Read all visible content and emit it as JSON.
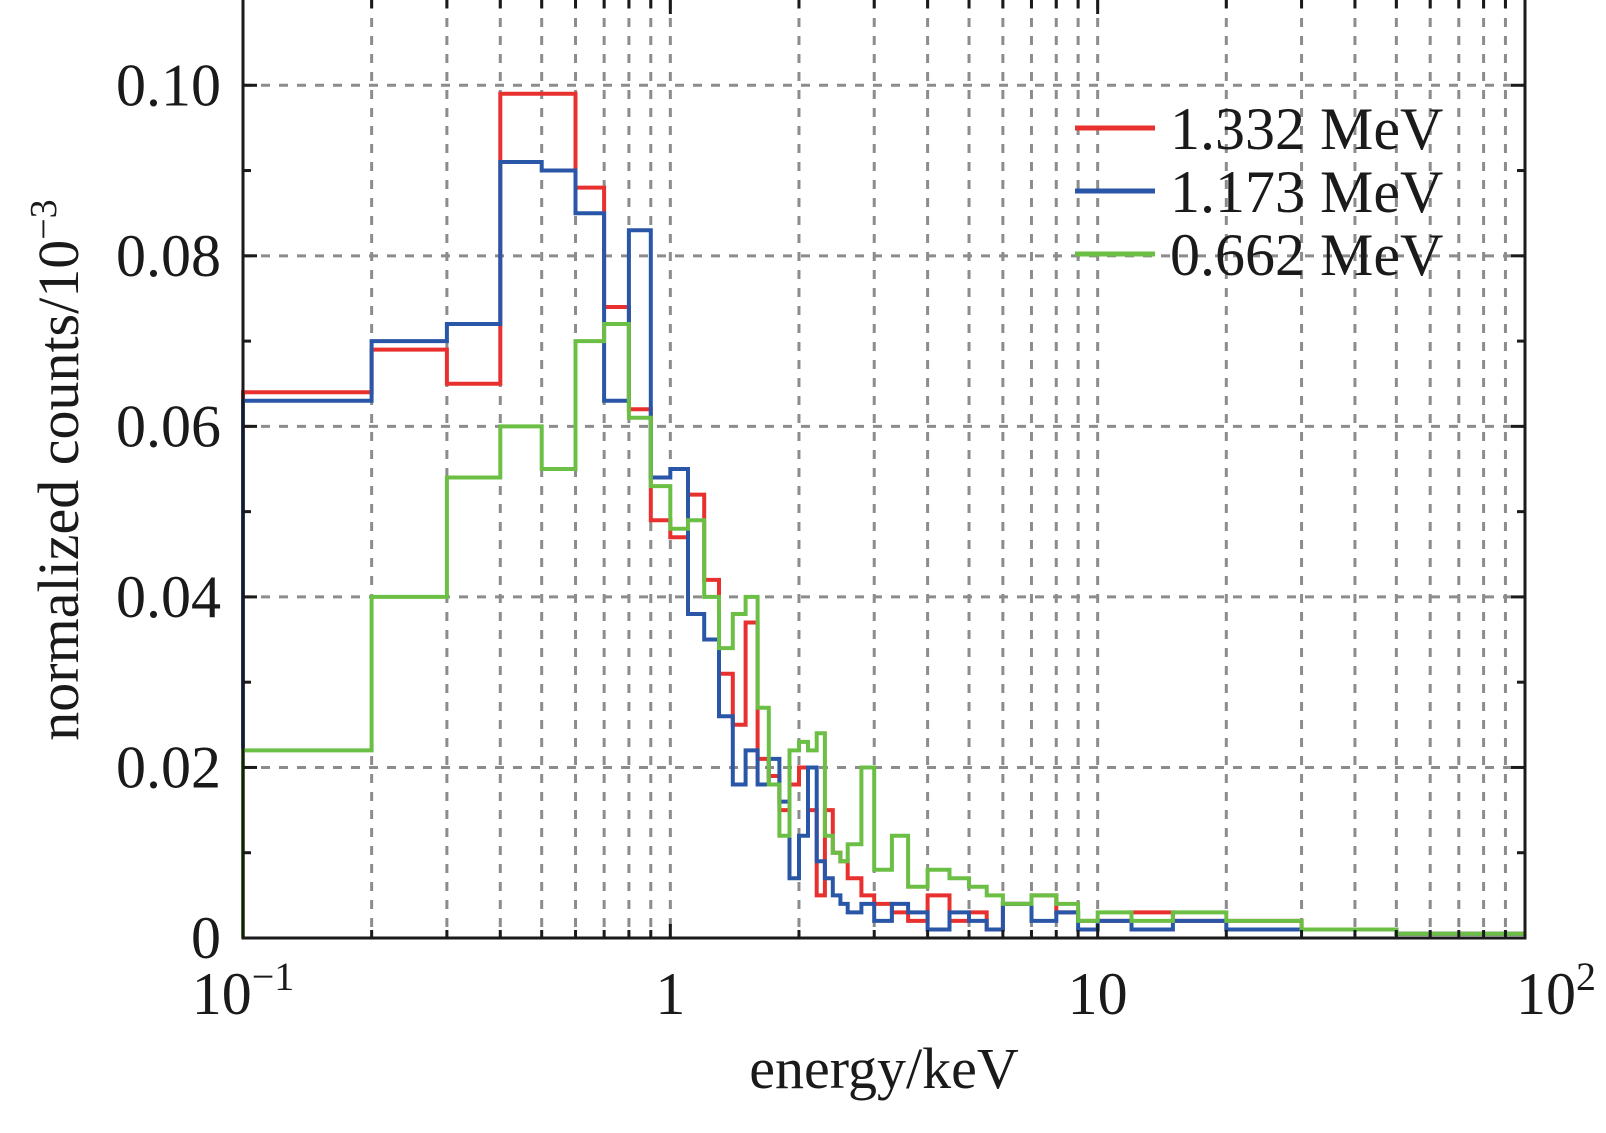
{
  "chart_data": {
    "type": "line",
    "step": true,
    "title": "",
    "xlabel": "energy/keV",
    "ylabel": "normalized counts/10",
    "ylabel_exponent": "−3",
    "x_scale": "log",
    "xlim": [
      0.1,
      100
    ],
    "ylim": [
      0,
      0.11
    ],
    "grid": true,
    "x_ticks": [
      {
        "value": 0.1,
        "base": "10",
        "exp": "−1"
      },
      {
        "value": 1,
        "base": "1",
        "exp": ""
      },
      {
        "value": 10,
        "base": "10",
        "exp": ""
      },
      {
        "value": 100,
        "base": "10",
        "exp": "2"
      }
    ],
    "y_ticks": [
      {
        "value": 0,
        "label": "0"
      },
      {
        "value": 0.02,
        "label": "0.02"
      },
      {
        "value": 0.04,
        "label": "0.04"
      },
      {
        "value": 0.06,
        "label": "0.06"
      },
      {
        "value": 0.08,
        "label": "0.08"
      },
      {
        "value": 0.1,
        "label": "0.10"
      }
    ],
    "legend_position": "top-right",
    "series": [
      {
        "name": "1.332 MeV",
        "color": "#e8312f",
        "edges": [
          0.1,
          0.2,
          0.3,
          0.4,
          0.5,
          0.6,
          0.7,
          0.8,
          0.9,
          1.0,
          1.1,
          1.2,
          1.3,
          1.4,
          1.5,
          1.6,
          1.7,
          1.8,
          1.9,
          2.0,
          2.1,
          2.2,
          2.3,
          2.4,
          2.5,
          2.6,
          2.8,
          3.0,
          3.3,
          3.6,
          4.0,
          4.5,
          5.0,
          5.5,
          6.0,
          7.0,
          8.0,
          9.0,
          10,
          12,
          15,
          20,
          30,
          50,
          100
        ],
        "values": [
          0.064,
          0.069,
          0.065,
          0.099,
          0.099,
          0.088,
          0.074,
          0.062,
          0.049,
          0.047,
          0.052,
          0.042,
          0.031,
          0.025,
          0.037,
          0.021,
          0.019,
          0.015,
          0.018,
          0.02,
          0.015,
          0.005,
          0.015,
          0.01,
          0.009,
          0.007,
          0.005,
          0.004,
          0.003,
          0.002,
          0.005,
          0.002,
          0.003,
          0.001,
          0.004,
          0.005,
          0.003,
          0.002,
          0.002,
          0.003,
          0.002,
          0.002,
          0.001,
          0.0005
        ]
      },
      {
        "name": "1.173 MeV",
        "color": "#2a56a8",
        "edges": [
          0.1,
          0.2,
          0.3,
          0.4,
          0.5,
          0.6,
          0.7,
          0.8,
          0.9,
          1.0,
          1.1,
          1.2,
          1.3,
          1.4,
          1.5,
          1.6,
          1.7,
          1.8,
          1.9,
          2.0,
          2.1,
          2.2,
          2.3,
          2.4,
          2.5,
          2.6,
          2.8,
          3.0,
          3.3,
          3.6,
          4.0,
          4.5,
          5.0,
          5.5,
          6.0,
          7.0,
          8.0,
          9.0,
          10,
          12,
          15,
          20,
          30,
          50,
          100
        ],
        "values": [
          0.063,
          0.07,
          0.072,
          0.091,
          0.09,
          0.085,
          0.063,
          0.083,
          0.054,
          0.055,
          0.038,
          0.035,
          0.026,
          0.018,
          0.022,
          0.018,
          0.021,
          0.016,
          0.007,
          0.012,
          0.02,
          0.009,
          0.007,
          0.005,
          0.004,
          0.003,
          0.004,
          0.002,
          0.004,
          0.003,
          0.001,
          0.003,
          0.002,
          0.001,
          0.004,
          0.002,
          0.003,
          0.001,
          0.002,
          0.001,
          0.002,
          0.001,
          0.001,
          0.0005
        ]
      },
      {
        "name": "0.662 MeV",
        "color": "#6cbf45",
        "edges": [
          0.1,
          0.2,
          0.3,
          0.4,
          0.5,
          0.6,
          0.7,
          0.8,
          0.9,
          1.0,
          1.1,
          1.2,
          1.3,
          1.4,
          1.5,
          1.6,
          1.7,
          1.8,
          1.9,
          2.0,
          2.1,
          2.2,
          2.3,
          2.4,
          2.5,
          2.6,
          2.8,
          3.0,
          3.3,
          3.6,
          4.0,
          4.5,
          5.0,
          5.5,
          6.0,
          7.0,
          8.0,
          9.0,
          10,
          12,
          15,
          20,
          30,
          50,
          100
        ],
        "values": [
          0.022,
          0.04,
          0.054,
          0.06,
          0.055,
          0.07,
          0.072,
          0.061,
          0.053,
          0.048,
          0.049,
          0.04,
          0.034,
          0.038,
          0.04,
          0.027,
          0.018,
          0.012,
          0.022,
          0.023,
          0.022,
          0.024,
          0.012,
          0.01,
          0.009,
          0.011,
          0.02,
          0.008,
          0.012,
          0.006,
          0.008,
          0.007,
          0.006,
          0.005,
          0.004,
          0.005,
          0.004,
          0.002,
          0.003,
          0.002,
          0.003,
          0.002,
          0.001,
          0.0005
        ]
      }
    ]
  }
}
